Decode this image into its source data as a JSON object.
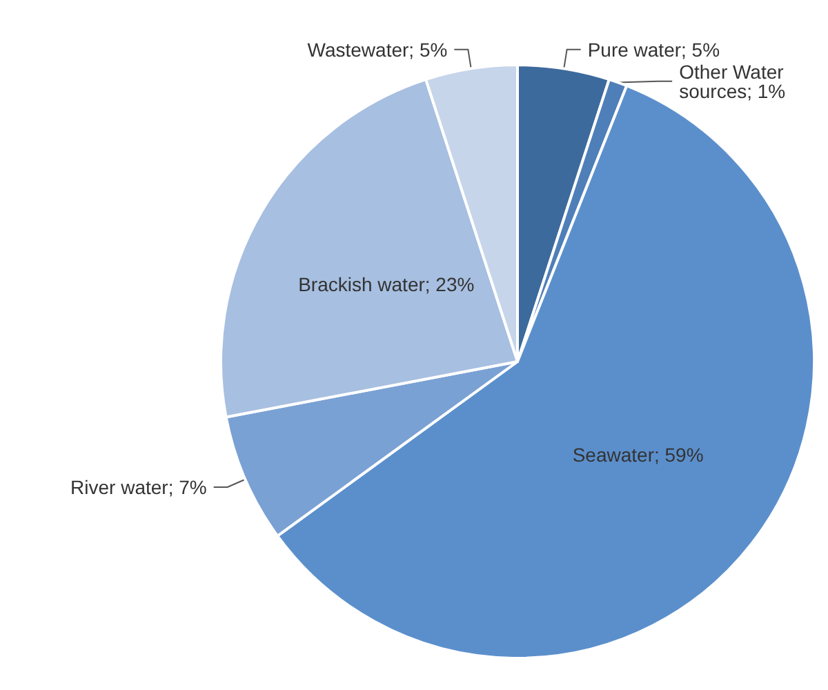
{
  "chart_data": {
    "type": "pie",
    "categories": [
      "Pure water",
      "Other Water sources",
      "Seawater",
      "River water",
      "Brackish water",
      "Wastewater"
    ],
    "values": [
      5,
      1,
      59,
      7,
      23,
      5
    ],
    "value_labels": [
      "5%",
      "1%",
      "59%",
      "7%",
      "23%",
      "5%"
    ],
    "colors": [
      "#3d6a9c",
      "#4f7fb8",
      "#5b8fcc",
      "#7aa1d3",
      "#a7bfe0",
      "#c6d5ea"
    ],
    "legend": false
  }
}
